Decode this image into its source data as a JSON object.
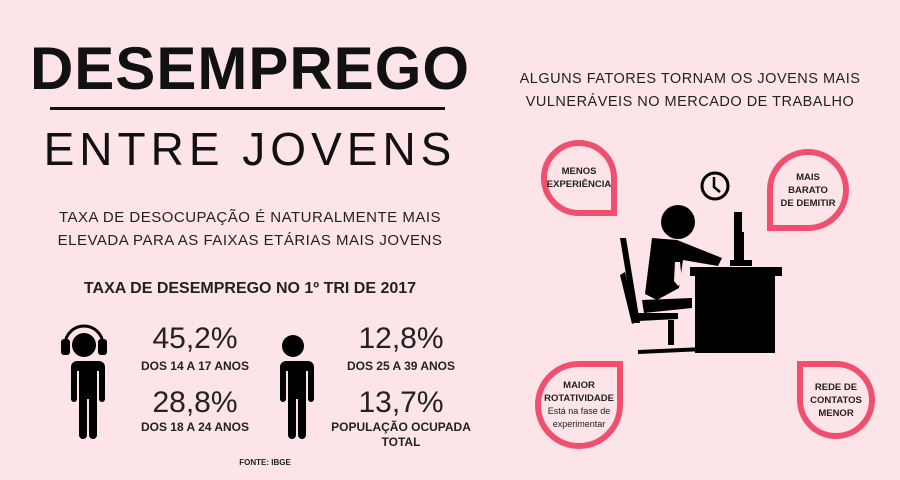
{
  "header": {
    "title": "DESEMPREGO",
    "subtitle": "ENTRE JOVENS"
  },
  "description": [
    "TAXA DE DESOCUPAÇÃO É NATURALMENTE MAIS",
    "ELEVADA PARA AS FAIXAS ETÁRIAS MAIS JOVENS"
  ],
  "rates": {
    "title": "TAXA DE DESEMPREGO NO 1º TRI DE 2017",
    "items": [
      {
        "value": "45,2%",
        "label": "DOS 14 A 17 ANOS"
      },
      {
        "value": "28,8%",
        "label": "DOS 18 A 24 ANOS"
      },
      {
        "value": "12,8%",
        "label": "DOS 25  A 39 ANOS"
      },
      {
        "value": "13,7%",
        "label": "POPULAÇÃO OCUPADA",
        "label2": "TOTAL"
      }
    ],
    "source": "FONTE: IBGE"
  },
  "factors": {
    "title": [
      "ALGUNS FATORES TORNAM OS JOVENS MAIS",
      "VULNERÁVEIS NO MERCADO DE TRABALHO"
    ],
    "items": [
      {
        "lines": [
          "MENOS",
          "EXPERIÊNCIA"
        ]
      },
      {
        "lines": [
          "MAIS",
          "BARATO",
          "DE DEMITIR"
        ]
      },
      {
        "lines": [
          "MAIOR",
          "ROTATIVIDADE"
        ],
        "note": [
          "Está na fase de",
          "experimentar"
        ]
      },
      {
        "lines": [
          "REDE DE",
          "CONTATOS",
          "MENOR"
        ]
      }
    ]
  },
  "colors": {
    "background": "#fde4e9",
    "accent": "#f0506e",
    "ink": "#111111"
  }
}
